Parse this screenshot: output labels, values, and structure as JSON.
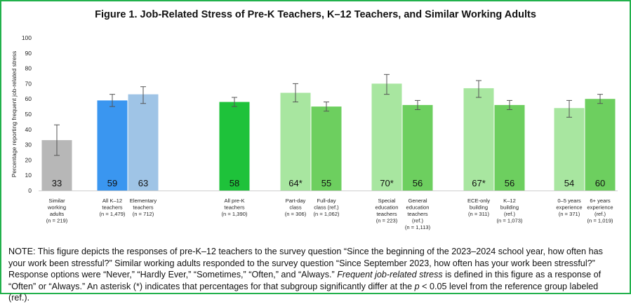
{
  "title": "Figure 1. Job-Related Stress of Pre-K Teachers, K–12 Teachers, and Similar Working Adults",
  "note": {
    "part1": "NOTE: This figure depicts the responses of pre-K–12 teachers to the survey question “Since the beginning of the 2023–2024 school year, how often has your work been stressful?” Similar working adults responded to the survey question “Since September 2023, how often has your work been stressful?” Response options were “Never,” “Hardly Ever,” “Sometimes,” “Often,” and “Always.” ",
    "emph": "Frequent job-related stress",
    "part2": " is defined in this figure as a response of “Often” or “Always.” An asterisk (*) indicates that percentages for that subgroup significantly differ at the ",
    "p": "p",
    "part3": " < 0.05 level from the reference group labeled (ref.)."
  },
  "chart_data": {
    "type": "bar",
    "title": "Figure 1. Job-Related Stress of Pre-K Teachers, K–12 Teachers, and Similar Working Adults",
    "ylabel": "Percentage reporting frequent job-related stress",
    "ylim": [
      0,
      100
    ],
    "yticks": [
      0,
      10,
      20,
      30,
      40,
      50,
      60,
      70,
      80,
      90,
      100
    ],
    "grid": false,
    "bars": [
      {
        "label": [
          "Similar",
          "working",
          "adults",
          "(n = 219)"
        ],
        "value": 33,
        "display": "33",
        "err": [
          23,
          43
        ],
        "color": "#b7b7b7"
      },
      {
        "label": [
          "All K–12",
          "teachers",
          "(n = 1,479)"
        ],
        "value": 59,
        "display": "59",
        "err": [
          55,
          63
        ],
        "color": "#3a96f0"
      },
      {
        "label": [
          "Elementary",
          "teachers",
          "(n = 712)"
        ],
        "value": 63,
        "display": "63",
        "err": [
          57,
          68
        ],
        "color": "#9fc4e6"
      },
      {
        "label": [
          "All pre-K",
          "teachers",
          "(n = 1,390)"
        ],
        "value": 58,
        "display": "58",
        "err": [
          55,
          61
        ],
        "color": "#1ec23a"
      },
      {
        "label": [
          "Part-day",
          "class",
          "(n = 306)"
        ],
        "value": 64,
        "display": "64*",
        "err": [
          58,
          70
        ],
        "color": "#a8e6a0"
      },
      {
        "label": [
          "Full-day",
          "class (ref.)",
          "(n = 1,062)"
        ],
        "value": 55,
        "display": "55",
        "err": [
          52,
          58
        ],
        "color": "#6dcf5f"
      },
      {
        "label": [
          "Special",
          "education",
          "teachers",
          "(n = 223)"
        ],
        "value": 70,
        "display": "70*",
        "err": [
          63,
          76
        ],
        "color": "#a8e6a0"
      },
      {
        "label": [
          "General",
          "education",
          "teachers",
          "(ref.)",
          "(n = 1,113)"
        ],
        "value": 56,
        "display": "56",
        "err": [
          53,
          59
        ],
        "color": "#6dcf5f"
      },
      {
        "label": [
          "ECE-only",
          "building",
          "(n = 311)"
        ],
        "value": 67,
        "display": "67*",
        "err": [
          61,
          72
        ],
        "color": "#a8e6a0"
      },
      {
        "label": [
          "K–12",
          "building",
          "(ref.)",
          "(n = 1,073)"
        ],
        "value": 56,
        "display": "56",
        "err": [
          53,
          59
        ],
        "color": "#6dcf5f"
      },
      {
        "label": [
          "0–5 years",
          "experience",
          "(n = 371)"
        ],
        "value": 54,
        "display": "54",
        "err": [
          48,
          59
        ],
        "color": "#a8e6a0"
      },
      {
        "label": [
          "6+ years",
          "experience",
          "(ref.)",
          "(n = 1,019)"
        ],
        "value": 60,
        "display": "60",
        "err": [
          57,
          63
        ],
        "color": "#6dcf5f"
      }
    ]
  }
}
